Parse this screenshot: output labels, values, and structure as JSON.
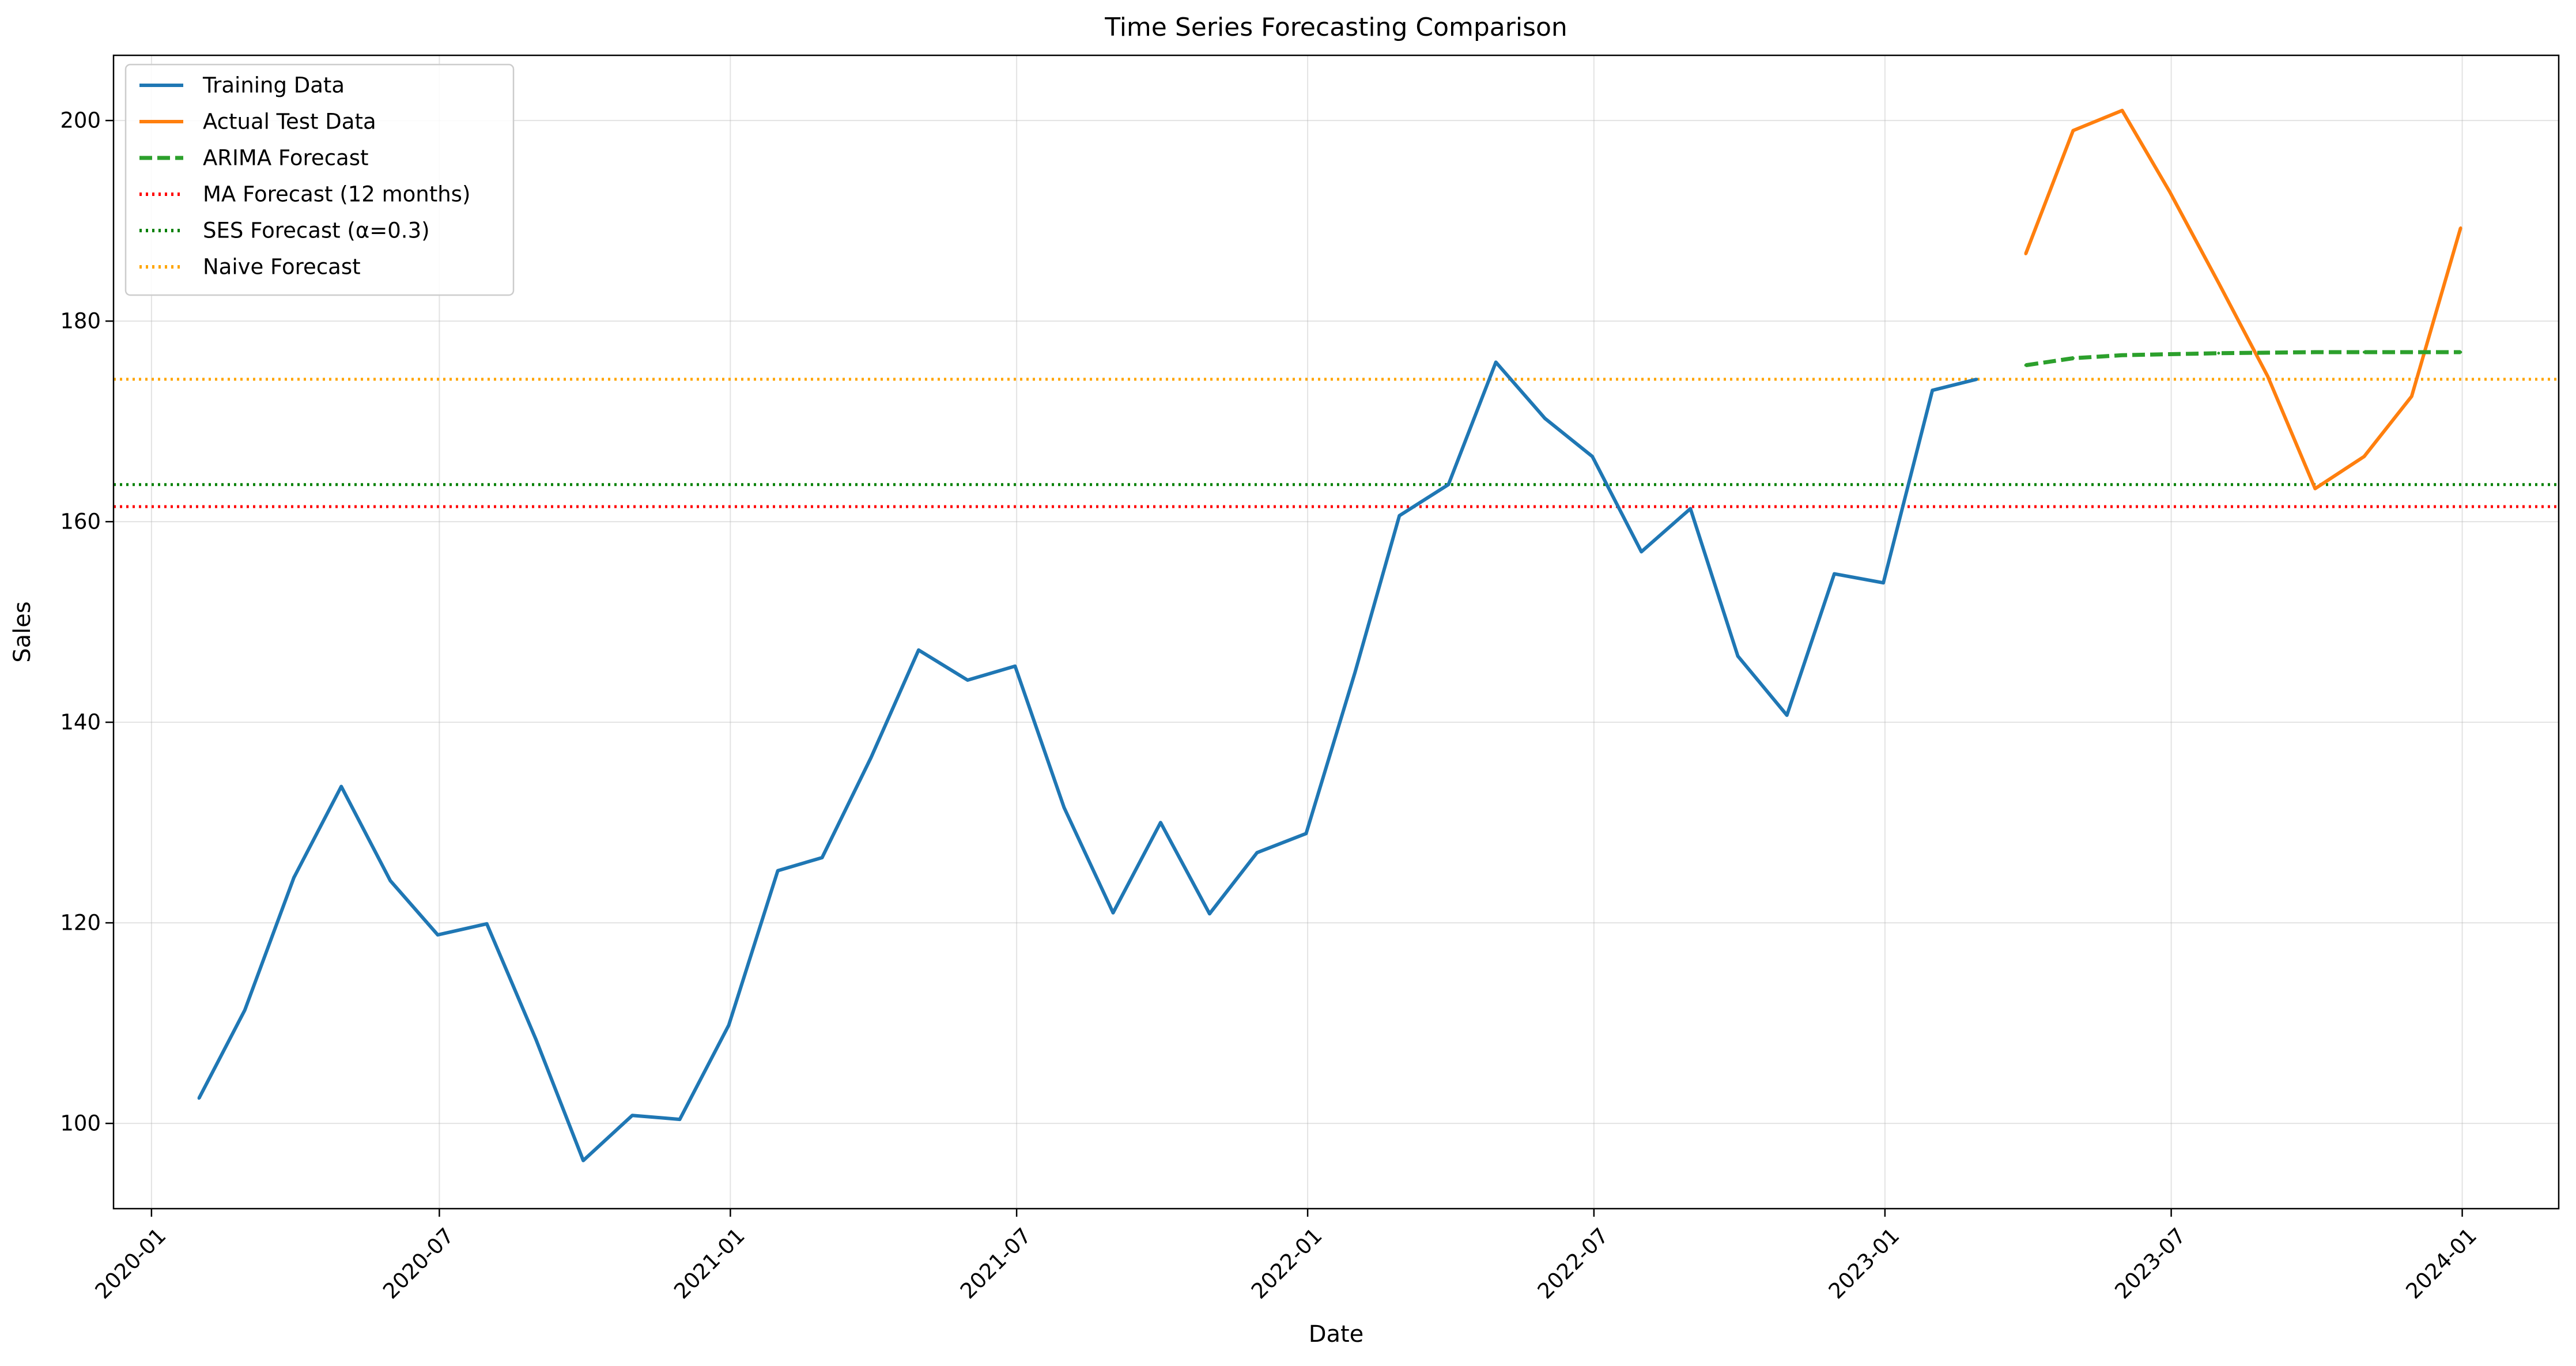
{
  "chart_data": {
    "type": "line",
    "title": "Time Series Forecasting Comparison",
    "xlabel": "Date",
    "ylabel": "Sales",
    "x_ticks": [
      "2020-01",
      "2020-07",
      "2021-01",
      "2021-07",
      "2022-01",
      "2022-07",
      "2023-01",
      "2023-07",
      "2024-01"
    ],
    "y_ticks": [
      100,
      120,
      140,
      160,
      180,
      200
    ],
    "xlim": [
      "2019-12-08",
      "2024-03-02"
    ],
    "ylim": [
      91.5,
      206.5
    ],
    "grid": true,
    "legend_position": "top-left",
    "series": [
      {
        "name": "Training Data",
        "color": "#1f77b4",
        "style": "solid",
        "x": [
          "2020-01-31",
          "2020-02-29",
          "2020-03-31",
          "2020-04-30",
          "2020-05-31",
          "2020-06-30",
          "2020-07-31",
          "2020-08-31",
          "2020-09-30",
          "2020-10-31",
          "2020-11-30",
          "2020-12-31",
          "2021-01-31",
          "2021-02-28",
          "2021-03-31",
          "2021-04-30",
          "2021-05-31",
          "2021-06-30",
          "2021-07-31",
          "2021-08-31",
          "2021-09-30",
          "2021-10-31",
          "2021-11-30",
          "2021-12-31",
          "2022-01-31",
          "2022-02-28",
          "2022-03-31",
          "2022-04-30",
          "2022-05-31",
          "2022-06-30",
          "2022-07-31",
          "2022-08-31",
          "2022-09-30",
          "2022-10-31",
          "2022-11-30",
          "2022-12-31",
          "2023-01-31",
          "2023-02-28"
        ],
        "y": [
          102.5,
          111.3,
          124.5,
          133.6,
          124.2,
          118.8,
          119.9,
          108.4,
          96.3,
          100.8,
          100.4,
          109.8,
          125.2,
          126.5,
          136.5,
          147.2,
          144.2,
          145.6,
          131.5,
          121.0,
          130.0,
          120.9,
          127.0,
          128.9,
          145.0,
          160.6,
          163.7,
          175.9,
          170.3,
          166.5,
          157.0,
          161.3,
          146.6,
          140.7,
          154.8,
          153.9,
          173.1,
          174.2
        ]
      },
      {
        "name": "Actual Test Data",
        "color": "#ff7f0e",
        "style": "solid",
        "x": [
          "2023-03-31",
          "2023-04-30",
          "2023-05-31",
          "2023-06-30",
          "2023-07-31",
          "2023-08-31",
          "2023-09-30",
          "2023-10-31",
          "2023-11-30",
          "2023-12-31"
        ],
        "y": [
          186.7,
          199.0,
          201.0,
          192.9,
          183.8,
          174.5,
          163.3,
          166.5,
          172.5,
          189.3
        ]
      },
      {
        "name": "ARIMA Forecast",
        "color": "#2ca02c",
        "style": "dashed",
        "x": [
          "2023-03-31",
          "2023-04-30",
          "2023-05-31",
          "2023-06-30",
          "2023-07-31",
          "2023-08-31",
          "2023-09-30",
          "2023-10-31",
          "2023-11-30",
          "2023-12-31"
        ],
        "y": [
          175.6,
          176.3,
          176.6,
          176.7,
          176.8,
          176.85,
          176.9,
          176.9,
          176.9,
          176.9
        ]
      },
      {
        "name": "MA Forecast (12 months)",
        "color": "#ff0000",
        "style": "dotted",
        "hline": 161.5
      },
      {
        "name": "SES Forecast (α=0.3)",
        "color": "#008000",
        "style": "dotted",
        "hline": 163.7
      },
      {
        "name": "Naive Forecast",
        "color": "#ffa500",
        "style": "dotted",
        "hline": 174.2
      }
    ]
  }
}
